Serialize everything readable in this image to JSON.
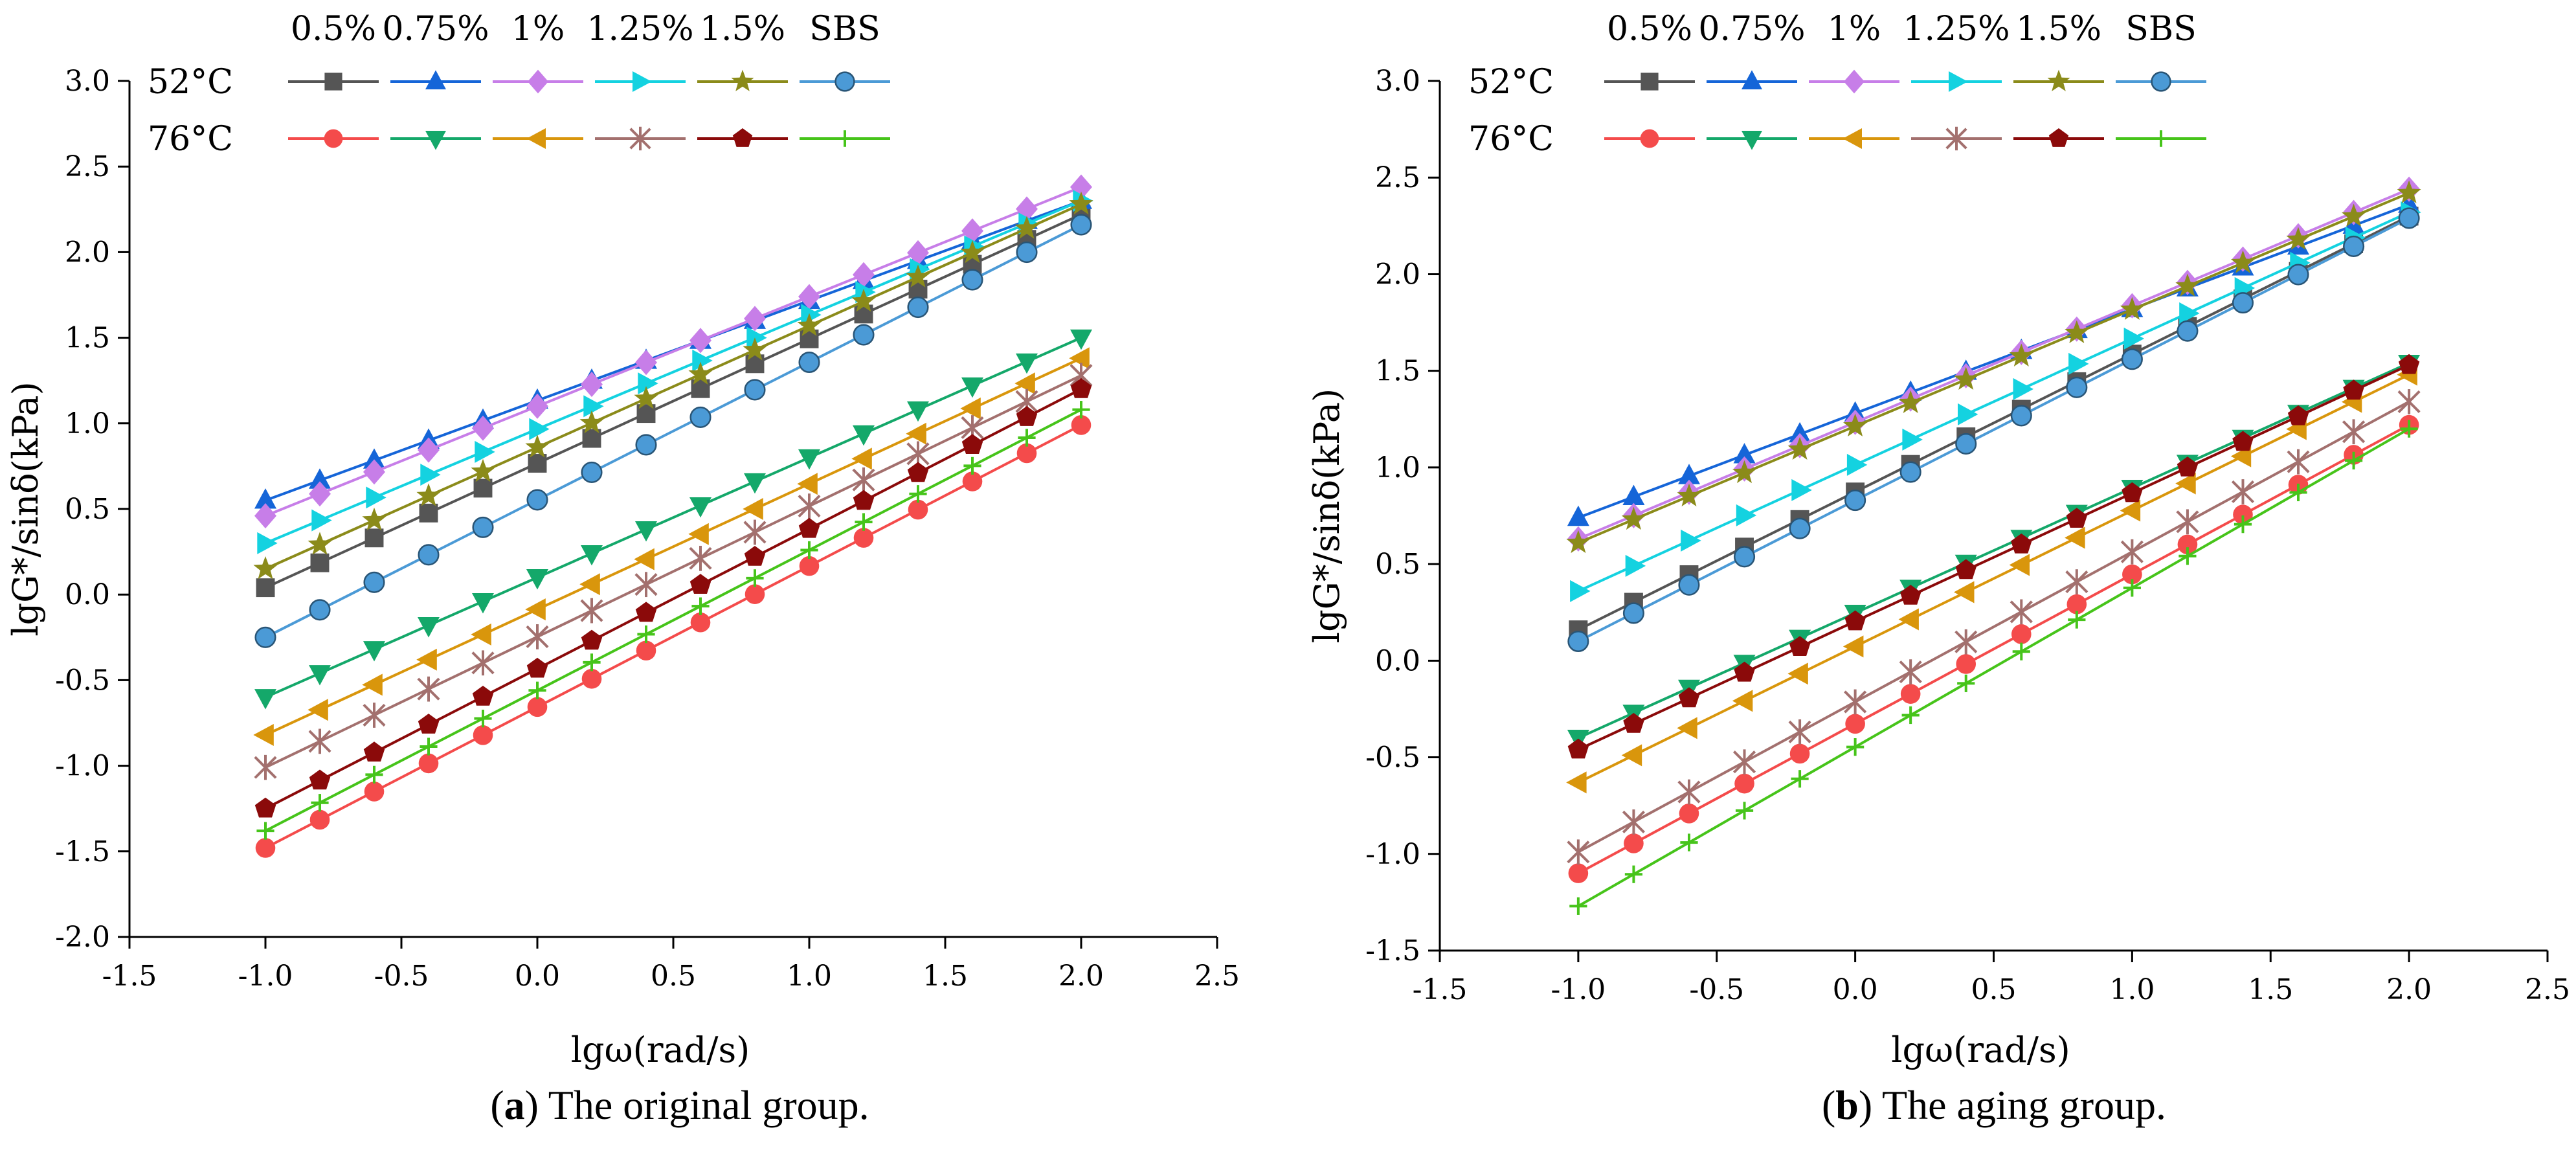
{
  "captions": [
    {
      "letter": "a",
      "rest": " The original group."
    },
    {
      "letter": "b",
      "rest": " The aging group."
    }
  ],
  "legend": {
    "percent_labels": [
      "0.5%",
      "0.75%",
      "1%",
      "1.25%",
      "1.5%",
      "SBS"
    ],
    "row_labels": [
      "52°C",
      "76°C"
    ]
  },
  "series_styles": [
    {
      "name": "0.5% 52°C",
      "color": "#555555",
      "marker": "square"
    },
    {
      "name": "0.75% 52°C",
      "color": "#1565d8",
      "marker": "triangle-up"
    },
    {
      "name": "1% 52°C",
      "color": "#c77ee8",
      "marker": "diamond"
    },
    {
      "name": "1.25% 52°C",
      "color": "#14d2e0",
      "marker": "triangle-right"
    },
    {
      "name": "1.5% 52°C",
      "color": "#8b8b1a",
      "marker": "star"
    },
    {
      "name": "SBS 52°C",
      "color": "#4b9ad6",
      "marker": "sphere"
    },
    {
      "name": "0.5% 76°C",
      "color": "#f44b4b",
      "marker": "circle"
    },
    {
      "name": "0.75% 76°C",
      "color": "#14a86a",
      "marker": "triangle-down"
    },
    {
      "name": "1% 76°C",
      "color": "#d9960c",
      "marker": "triangle-left"
    },
    {
      "name": "1.25% 76°C",
      "color": "#a3706e",
      "marker": "asterisk"
    },
    {
      "name": "1.5% 76°C",
      "color": "#8b0a0a",
      "marker": "pentagon"
    },
    {
      "name": "SBS 76°C",
      "color": "#46c41a",
      "marker": "plus"
    }
  ],
  "chart_data": [
    {
      "type": "line",
      "panel": "a",
      "xlabel": "lgω(rad/s)",
      "ylabel": "lgG*/sinδ(kPa)",
      "xlim": [
        -1.5,
        2.5
      ],
      "ylim": [
        -2.0,
        3.0
      ],
      "xticks": [
        "-1.5",
        "-1.0",
        "-0.5",
        "0.0",
        "0.5",
        "1.0",
        "1.5",
        "2.0",
        "2.5"
      ],
      "yticks": [
        "-2.0",
        "-1.5",
        "-1.0",
        "-0.5",
        "0.0",
        "0.5",
        "1.0",
        "1.5",
        "2.0",
        "2.5",
        "3.0"
      ],
      "x": [
        -1.0,
        -0.8,
        -0.6,
        -0.4,
        -0.2,
        0.0,
        0.2,
        0.4,
        0.6,
        0.8,
        1.0,
        1.2,
        1.4,
        1.6,
        1.8,
        2.0
      ],
      "series": [
        {
          "name": "0.5% 52°C",
          "start": 0.04,
          "end": 2.22
        },
        {
          "name": "0.75% 52°C",
          "start": 0.55,
          "end": 2.3
        },
        {
          "name": "1% 52°C",
          "start": 0.46,
          "end": 2.38
        },
        {
          "name": "1.25% 52°C",
          "start": 0.3,
          "end": 2.3
        },
        {
          "name": "1.5% 52°C",
          "start": 0.15,
          "end": 2.28
        },
        {
          "name": "SBS 52°C",
          "start": -0.25,
          "end": 2.16
        },
        {
          "name": "0.5% 76°C",
          "start": -1.48,
          "end": 0.99
        },
        {
          "name": "0.75% 76°C",
          "start": -0.6,
          "end": 1.5
        },
        {
          "name": "1% 76°C",
          "start": -0.82,
          "end": 1.38
        },
        {
          "name": "1.25% 76°C",
          "start": -1.01,
          "end": 1.28
        },
        {
          "name": "1.5% 76°C",
          "start": -1.25,
          "end": 1.2
        },
        {
          "name": "SBS 76°C",
          "start": -1.38,
          "end": 1.08
        }
      ]
    },
    {
      "type": "line",
      "panel": "b",
      "xlabel": "lgω(rad/s)",
      "ylabel": "lgG*/sinδ(kPa)",
      "xlim": [
        -1.5,
        2.5
      ],
      "ylim": [
        -1.5,
        3.0
      ],
      "xticks": [
        "-1.5",
        "-1.0",
        "-0.5",
        "0.0",
        "0.5",
        "1.0",
        "1.5",
        "2.0",
        "2.5"
      ],
      "yticks": [
        "-1.5",
        "-1.0",
        "-0.5",
        "0.0",
        "0.5",
        "1.0",
        "1.5",
        "2.0",
        "2.5",
        "3.0"
      ],
      "x": [
        -1.0,
        -0.8,
        -0.6,
        -0.4,
        -0.2,
        0.0,
        0.2,
        0.4,
        0.6,
        0.8,
        1.0,
        1.2,
        1.4,
        1.6,
        1.8,
        2.0
      ],
      "series": [
        {
          "name": "0.5% 52°C",
          "start": 0.16,
          "end": 2.3
        },
        {
          "name": "0.75% 52°C",
          "start": 0.74,
          "end": 2.36
        },
        {
          "name": "1% 52°C",
          "start": 0.63,
          "end": 2.44
        },
        {
          "name": "1.25% 52°C",
          "start": 0.36,
          "end": 2.32
        },
        {
          "name": "1.5% 52°C",
          "start": 0.61,
          "end": 2.42
        },
        {
          "name": "SBS 52°C",
          "start": 0.1,
          "end": 2.29
        },
        {
          "name": "0.5% 76°C",
          "start": -1.1,
          "end": 1.22
        },
        {
          "name": "0.75% 76°C",
          "start": -0.4,
          "end": 1.54
        },
        {
          "name": "1% 76°C",
          "start": -0.63,
          "end": 1.48
        },
        {
          "name": "1.25% 76°C",
          "start": -0.99,
          "end": 1.34
        },
        {
          "name": "1.5% 76°C",
          "start": -0.46,
          "end": 1.53
        },
        {
          "name": "SBS 76°C",
          "start": -1.27,
          "end": 1.2
        }
      ]
    }
  ]
}
